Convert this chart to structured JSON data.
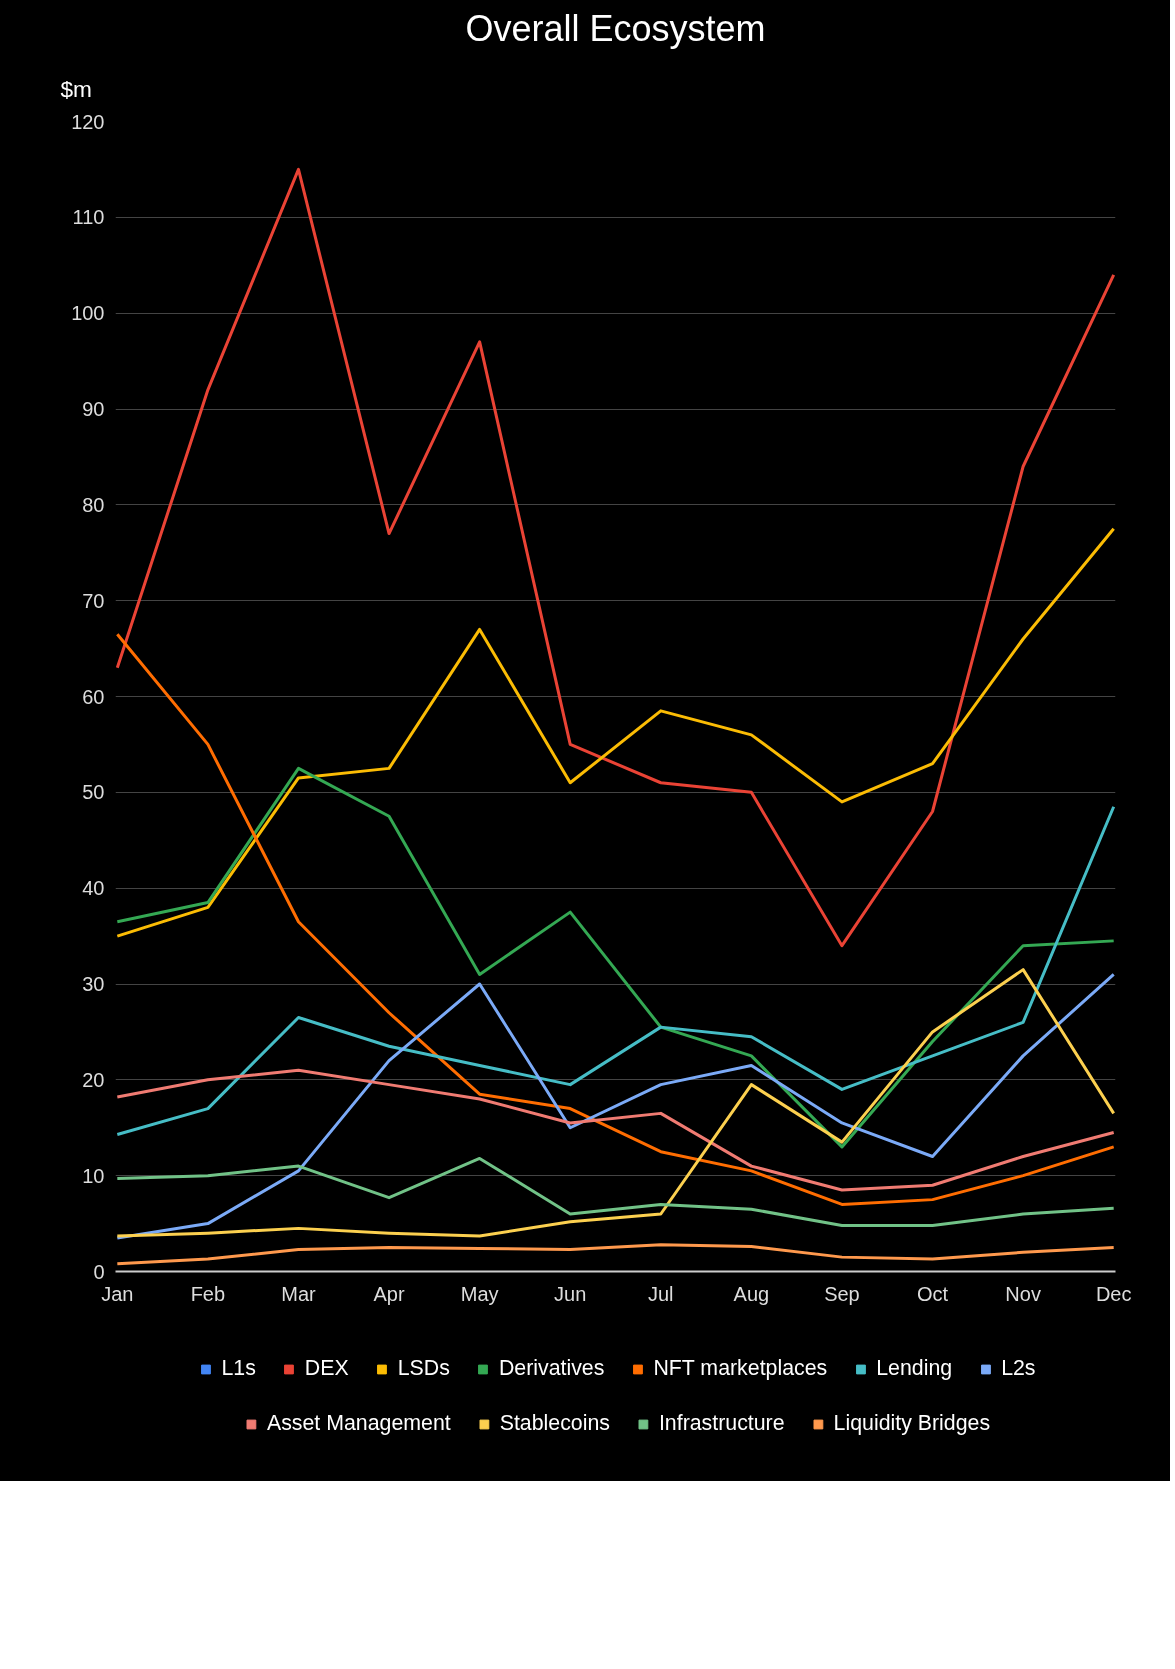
{
  "chart_data": {
    "type": "line",
    "title": "Overall Ecosystem",
    "ylabel": "$m",
    "categories": [
      "Jan",
      "Feb",
      "Mar",
      "Apr",
      "May",
      "Jun",
      "Jul",
      "Aug",
      "Sep",
      "Oct",
      "Nov",
      "Dec"
    ],
    "ylim": [
      0,
      120
    ],
    "yticks": [
      0,
      10,
      20,
      30,
      40,
      50,
      60,
      70,
      80,
      90,
      100,
      110,
      120
    ],
    "grid": "y",
    "legend": "bottom",
    "marker": "none",
    "line_style": "solid",
    "series": [
      {
        "name": "L1s",
        "color": "#4285f4",
        "values": [
          null,
          null,
          null,
          null,
          null,
          null,
          null,
          null,
          null,
          null,
          null,
          null
        ]
      },
      {
        "name": "DEX",
        "color": "#ea4335",
        "values": [
          63,
          92,
          115,
          77,
          97,
          55,
          51,
          50,
          34,
          48,
          84,
          104
        ]
      },
      {
        "name": "LSDs",
        "color": "#fbbc04",
        "values": [
          35,
          38,
          51.5,
          52.5,
          67,
          51,
          58.5,
          56,
          49,
          53,
          66,
          77.5
        ]
      },
      {
        "name": "Derivatives",
        "color": "#34a853",
        "values": [
          36.5,
          38.5,
          52.5,
          47.5,
          31,
          37.5,
          25.5,
          22.5,
          13,
          24,
          34,
          34.5
        ]
      },
      {
        "name": "NFT marketplaces",
        "color": "#ff6d01",
        "values": [
          66.5,
          55,
          36.5,
          27,
          18.5,
          17,
          12.5,
          10.5,
          7,
          7.5,
          10,
          13
        ]
      },
      {
        "name": "Lending",
        "color": "#46bdc6",
        "values": [
          14.3,
          17,
          26.5,
          23.5,
          21.5,
          19.5,
          25.5,
          24.5,
          19,
          22.5,
          26,
          48.5
        ]
      },
      {
        "name": "L2s",
        "color": "#7baaf7",
        "values": [
          3.5,
          5,
          10.5,
          22,
          30,
          15,
          19.5,
          21.5,
          15.5,
          12,
          22.5,
          31
        ]
      },
      {
        "name": "Asset Management",
        "color": "#f07b72",
        "values": [
          18.2,
          20,
          21,
          19.5,
          18,
          15.5,
          16.5,
          11,
          8.5,
          9,
          12,
          14.5
        ]
      },
      {
        "name": "Stablecoins",
        "color": "#fcd04f",
        "values": [
          3.7,
          4,
          4.5,
          4,
          3.7,
          5.2,
          6,
          19.5,
          13.5,
          25,
          31.5,
          16.5
        ]
      },
      {
        "name": "Infrastructure",
        "color": "#71c287",
        "values": [
          9.7,
          10,
          11,
          7.7,
          11.8,
          6,
          7,
          6.5,
          4.8,
          4.8,
          6,
          6.6
        ]
      },
      {
        "name": "Liquidity Bridges",
        "color": "#ff994d",
        "values": [
          0.8,
          1.3,
          2.3,
          2.5,
          2.4,
          2.3,
          2.8,
          2.6,
          1.5,
          1.3,
          2,
          2.5
        ]
      }
    ]
  }
}
